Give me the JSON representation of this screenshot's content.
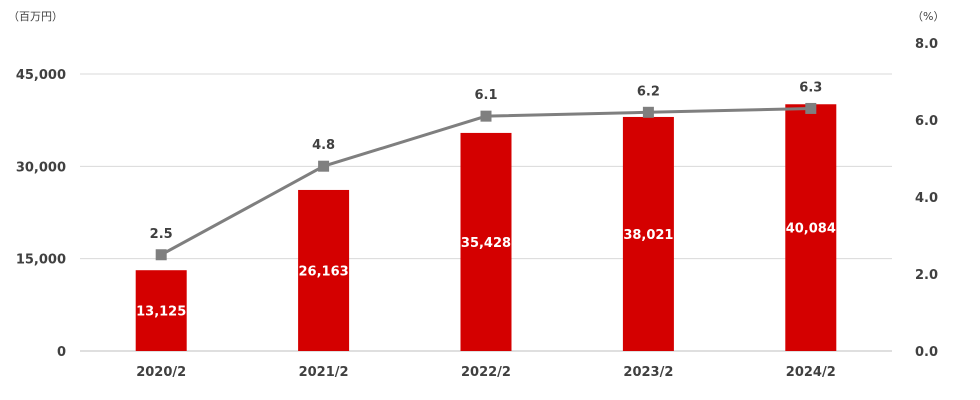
{
  "chart_data": {
    "type": "bar",
    "categories": [
      "2020/2",
      "2021/2",
      "2022/2",
      "2023/2",
      "2024/2"
    ],
    "series": [
      {
        "type": "bar",
        "axis": "left",
        "values": [
          13125,
          26163,
          35428,
          38021,
          40084
        ],
        "labels": [
          "13,125",
          "26,163",
          "35,428",
          "38,021",
          "40,084"
        ],
        "color": "#d40000"
      },
      {
        "type": "line",
        "axis": "right",
        "values": [
          2.5,
          4.8,
          6.1,
          6.2,
          6.3
        ],
        "labels": [
          "2.5",
          "4.8",
          "6.1",
          "6.2",
          "6.3"
        ],
        "color": "#7f7f7f",
        "marker": "square"
      }
    ],
    "y_left": {
      "unit": "（百万円）",
      "ylim": [
        0,
        45000
      ],
      "ticks": [
        0,
        15000,
        30000,
        45000
      ],
      "tick_labels": [
        "0",
        "15,000",
        "30,000",
        "45,000"
      ]
    },
    "y_right": {
      "unit": "（%）",
      "ylim": [
        0,
        8
      ],
      "ticks": [
        0,
        2,
        4,
        6,
        8
      ],
      "tick_labels": [
        "0.0",
        "2.0",
        "4.0",
        "6.0",
        "8.0"
      ]
    },
    "grid": "horizontal",
    "legend": "none"
  }
}
